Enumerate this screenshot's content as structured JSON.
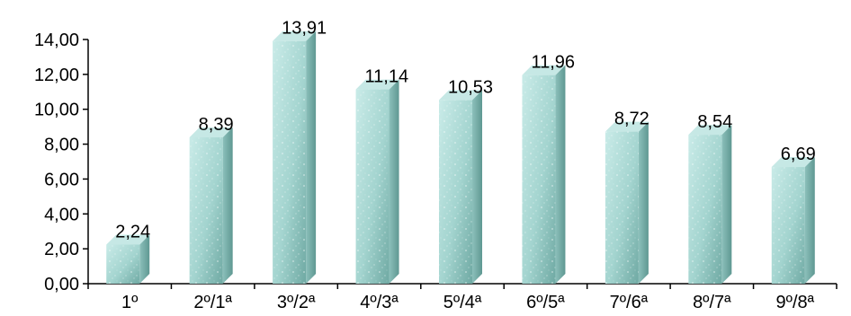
{
  "chart_data": {
    "type": "bar",
    "title": "",
    "xlabel": "",
    "ylabel": "",
    "categories": [
      "1º",
      "2º/1ª",
      "3º/2ª",
      "4º/3ª",
      "5º/4ª",
      "6º/5ª",
      "7º/6ª",
      "8º/7ª",
      "9º/8ª"
    ],
    "values": [
      2.24,
      8.39,
      13.91,
      11.14,
      10.53,
      11.96,
      8.72,
      8.54,
      6.69
    ],
    "value_labels": [
      "2,24",
      "8,39",
      "13,91",
      "11,14",
      "10,53",
      "11,96",
      "8,72",
      "8,54",
      "6,69"
    ],
    "y_ticks": [
      0,
      2,
      4,
      6,
      8,
      10,
      12,
      14
    ],
    "y_tick_labels": [
      "0,00",
      "2,00",
      "4,00",
      "6,00",
      "8,00",
      "10,00",
      "12,00",
      "14,00"
    ],
    "ylim": [
      0,
      14
    ],
    "grid": false,
    "legend": "none",
    "style": "3d-column",
    "colors": {
      "bar_front": "#a8d8d4",
      "bar_side": "#7fb3ae",
      "bar_top": "#c6e8e5"
    }
  }
}
